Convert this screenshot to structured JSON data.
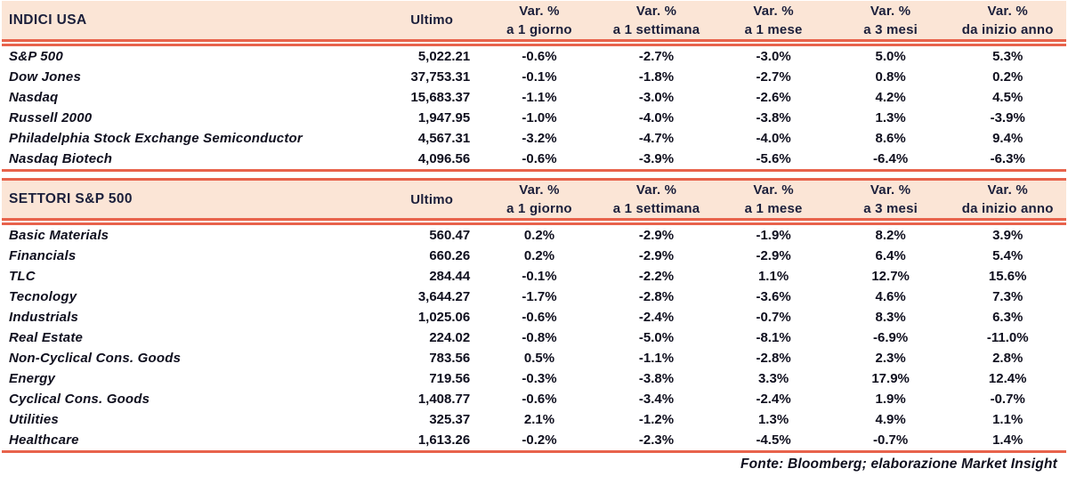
{
  "colors": {
    "accent_red": "#E8634C",
    "header_bg": "#FBE5D6",
    "header_text": "#1B1F3B",
    "body_text": "#0F0F1E"
  },
  "footer": {
    "source_note": "Fonte: Bloomberg; elaborazione Market Insight"
  },
  "chart_data": [
    {
      "type": "table",
      "title": "INDICI USA",
      "last_price_label": "Ultimo",
      "pct_columns": [
        {
          "top": "Var. %",
          "bottom": "a 1 giorno"
        },
        {
          "top": "Var. %",
          "bottom": "a 1 settimana"
        },
        {
          "top": "Var. %",
          "bottom": "a 1 mese"
        },
        {
          "top": "Var. %",
          "bottom": "a 3 mesi"
        },
        {
          "top": "Var. %",
          "bottom": "da inizio anno"
        }
      ],
      "rows": [
        {
          "name": "S&P 500",
          "ultimo": "5,022.21",
          "values": [
            "-0.6%",
            "-2.7%",
            "-3.0%",
            "5.0%",
            "5.3%"
          ]
        },
        {
          "name": "Dow Jones",
          "ultimo": "37,753.31",
          "values": [
            "-0.1%",
            "-1.8%",
            "-2.7%",
            "0.8%",
            "0.2%"
          ]
        },
        {
          "name": "Nasdaq",
          "ultimo": "15,683.37",
          "values": [
            "-1.1%",
            "-3.0%",
            "-2.6%",
            "4.2%",
            "4.5%"
          ]
        },
        {
          "name": "Russell 2000",
          "ultimo": "1,947.95",
          "values": [
            "-1.0%",
            "-4.0%",
            "-3.8%",
            "1.3%",
            "-3.9%"
          ]
        },
        {
          "name": "Philadelphia Stock Exchange Semiconductor",
          "ultimo": "4,567.31",
          "values": [
            "-3.2%",
            "-4.7%",
            "-4.0%",
            "8.6%",
            "9.4%"
          ]
        },
        {
          "name": "Nasdaq Biotech",
          "ultimo": "4,096.56",
          "values": [
            "-0.6%",
            "-3.9%",
            "-5.6%",
            "-6.4%",
            "-6.3%"
          ]
        }
      ]
    },
    {
      "type": "table",
      "title": "SETTORI S&P 500",
      "last_price_label": "Ultimo",
      "pct_columns": [
        {
          "top": "Var. %",
          "bottom": "a 1 giorno"
        },
        {
          "top": "Var. %",
          "bottom": "a 1 settimana"
        },
        {
          "top": "Var. %",
          "bottom": "a 1 mese"
        },
        {
          "top": "Var. %",
          "bottom": "a 3 mesi"
        },
        {
          "top": "Var. %",
          "bottom": "da inizio anno"
        }
      ],
      "rows": [
        {
          "name": "Basic Materials",
          "ultimo": "560.47",
          "values": [
            "0.2%",
            "-2.9%",
            "-1.9%",
            "8.2%",
            "3.9%"
          ]
        },
        {
          "name": "Financials",
          "ultimo": "660.26",
          "values": [
            "0.2%",
            "-2.9%",
            "-2.9%",
            "6.4%",
            "5.4%"
          ]
        },
        {
          "name": "TLC",
          "ultimo": "284.44",
          "values": [
            "-0.1%",
            "-2.2%",
            "1.1%",
            "12.7%",
            "15.6%"
          ]
        },
        {
          "name": "Tecnology",
          "ultimo": "3,644.27",
          "values": [
            "-1.7%",
            "-2.8%",
            "-3.6%",
            "4.6%",
            "7.3%"
          ]
        },
        {
          "name": "Industrials",
          "ultimo": "1,025.06",
          "values": [
            "-0.6%",
            "-2.4%",
            "-0.7%",
            "8.3%",
            "6.3%"
          ]
        },
        {
          "name": "Real Estate",
          "ultimo": "224.02",
          "values": [
            "-0.8%",
            "-5.0%",
            "-8.1%",
            "-6.9%",
            "-11.0%"
          ]
        },
        {
          "name": "Non-Cyclical Cons. Goods",
          "ultimo": "783.56",
          "values": [
            "0.5%",
            "-1.1%",
            "-2.8%",
            "2.3%",
            "2.8%"
          ]
        },
        {
          "name": "Energy",
          "ultimo": "719.56",
          "values": [
            "-0.3%",
            "-3.8%",
            "3.3%",
            "17.9%",
            "12.4%"
          ]
        },
        {
          "name": "Cyclical Cons. Goods",
          "ultimo": "1,408.77",
          "values": [
            "-0.6%",
            "-3.4%",
            "-2.4%",
            "1.9%",
            "-0.7%"
          ]
        },
        {
          "name": "Utilities",
          "ultimo": "325.37",
          "values": [
            "2.1%",
            "-1.2%",
            "1.3%",
            "4.9%",
            "1.1%"
          ]
        },
        {
          "name": "Healthcare",
          "ultimo": "1,613.26",
          "values": [
            "-0.2%",
            "-2.3%",
            "-4.5%",
            "-0.7%",
            "1.4%"
          ]
        }
      ]
    }
  ]
}
